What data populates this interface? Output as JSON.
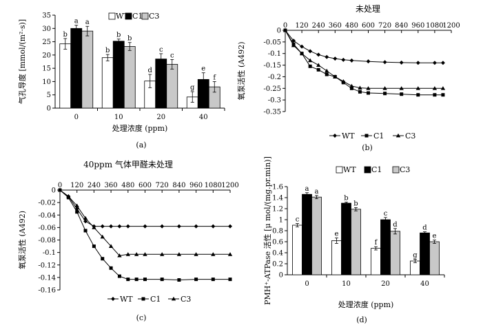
{
  "chart_data": [
    {
      "id": "a",
      "type": "bar",
      "caption": "(a)",
      "title": "",
      "xlabel": "处理浓度 (ppm)",
      "ylabel": "气孔导度 [mmol/(m²·s)]",
      "ylim": [
        0,
        35
      ],
      "yticks": [
        "0",
        "5",
        "10",
        "15",
        "20",
        "25",
        "30",
        "35"
      ],
      "categories": [
        "0",
        "10",
        "20",
        "40"
      ],
      "legend": [
        "WT",
        "C1",
        "C3"
      ],
      "series": [
        {
          "name": "WT",
          "color": "#ffffff",
          "values": [
            24.2,
            19.0,
            10.2,
            4.2
          ],
          "errors": [
            2.0,
            1.2,
            2.5,
            2.0
          ],
          "letters": [
            "b",
            "b",
            "d",
            "g"
          ]
        },
        {
          "name": "C1",
          "color": "#000000",
          "values": [
            30.0,
            25.2,
            18.5,
            10.8
          ],
          "errors": [
            1.2,
            0.8,
            2.0,
            2.5
          ],
          "letters": [
            "a",
            "b",
            "c",
            "e"
          ]
        },
        {
          "name": "C3",
          "color": "#c8c8c8",
          "values": [
            29.0,
            23.2,
            16.5,
            8.0
          ],
          "errors": [
            1.8,
            1.5,
            1.8,
            2.0
          ],
          "letters": [
            "a",
            "b",
            "c",
            "f"
          ]
        }
      ]
    },
    {
      "id": "b",
      "type": "line",
      "caption": "(b)",
      "title": "未处理",
      "ylabel": "氧泵活性 (A492)",
      "ylim": [
        -0.35,
        0
      ],
      "xlim": [
        0,
        1200
      ],
      "yticks": [
        "0",
        "-0.05",
        "-0.1",
        "-0.15",
        "-0.2",
        "-0.25",
        "-0.3",
        "-0.35"
      ],
      "xticks": [
        "0",
        "120",
        "240",
        "360",
        "480",
        "600",
        "720",
        "840",
        "960",
        "1080",
        "1200"
      ],
      "legend": [
        "WT",
        "C1",
        "C3"
      ],
      "series": [
        {
          "name": "WT",
          "marker": "diamond",
          "x": [
            0,
            60,
            120,
            180,
            240,
            300,
            360,
            420,
            480,
            600,
            720,
            840,
            960,
            1080,
            1140
          ],
          "y": [
            0,
            -0.045,
            -0.07,
            -0.09,
            -0.105,
            -0.115,
            -0.122,
            -0.127,
            -0.13,
            -0.134,
            -0.137,
            -0.139,
            -0.14,
            -0.14,
            -0.14
          ]
        },
        {
          "name": "C1",
          "marker": "square",
          "x": [
            0,
            60,
            120,
            180,
            240,
            300,
            360,
            420,
            480,
            540,
            600,
            720,
            840,
            960,
            1080,
            1140
          ],
          "y": [
            0,
            -0.06,
            -0.1,
            -0.155,
            -0.17,
            -0.19,
            -0.2,
            -0.225,
            -0.25,
            -0.265,
            -0.27,
            -0.272,
            -0.275,
            -0.278,
            -0.278,
            -0.278
          ]
        },
        {
          "name": "C3",
          "marker": "triangle",
          "x": [
            0,
            60,
            120,
            180,
            240,
            300,
            360,
            420,
            480,
            540,
            600,
            720,
            840,
            960,
            1080,
            1140
          ],
          "y": [
            0,
            -0.065,
            -0.1,
            -0.13,
            -0.15,
            -0.175,
            -0.2,
            -0.22,
            -0.24,
            -0.248,
            -0.25,
            -0.25,
            -0.25,
            -0.25,
            -0.25,
            -0.25
          ]
        }
      ]
    },
    {
      "id": "c",
      "type": "line",
      "caption": "(c)",
      "title": "40ppm 气体甲醛未处理",
      "ylabel": "氧泵活性 (A492)",
      "ylim": [
        -0.16,
        0
      ],
      "xlim": [
        0,
        1200
      ],
      "yticks": [
        "0",
        "-0.02",
        "-0.04",
        "-0.06",
        "-0.08",
        "-0.1",
        "-0.12",
        "-0.14",
        "-0.16"
      ],
      "xticks": [
        "0",
        "120",
        "240",
        "360",
        "480",
        "600",
        "720",
        "840",
        "960",
        "1080",
        "1200"
      ],
      "legend": [
        "WT",
        "C1",
        "C3"
      ],
      "series": [
        {
          "name": "WT",
          "marker": "diamond",
          "x": [
            0,
            60,
            120,
            180,
            240,
            300,
            360,
            420,
            480,
            600,
            720,
            840,
            960,
            1080,
            1200
          ],
          "y": [
            0,
            -0.01,
            -0.03,
            -0.05,
            -0.058,
            -0.058,
            -0.058,
            -0.058,
            -0.058,
            -0.058,
            -0.058,
            -0.058,
            -0.058,
            -0.058,
            -0.058
          ]
        },
        {
          "name": "C1",
          "marker": "square",
          "x": [
            0,
            60,
            120,
            180,
            240,
            300,
            360,
            420,
            480,
            540,
            600,
            720,
            840,
            960,
            1080,
            1200
          ],
          "y": [
            0,
            -0.012,
            -0.035,
            -0.065,
            -0.09,
            -0.11,
            -0.125,
            -0.138,
            -0.143,
            -0.143,
            -0.143,
            -0.143,
            -0.144,
            -0.143,
            -0.143,
            -0.143
          ]
        },
        {
          "name": "C3",
          "marker": "triangle",
          "x": [
            0,
            60,
            120,
            180,
            240,
            300,
            360,
            420,
            480,
            540,
            600,
            720,
            840,
            960,
            1080,
            1200
          ],
          "y": [
            0,
            -0.01,
            -0.025,
            -0.045,
            -0.06,
            -0.075,
            -0.09,
            -0.105,
            -0.103,
            -0.103,
            -0.103,
            -0.103,
            -0.103,
            -0.103,
            -0.103,
            -0.103
          ]
        }
      ]
    },
    {
      "id": "d",
      "type": "bar",
      "caption": "(d)",
      "title": "",
      "xlabel": "处理浓度 (ppm)",
      "ylabel": "PMH⁺-ATPase 活性 [μ mol/(mg.pr.min)]",
      "ylim": [
        0,
        1.6
      ],
      "yticks": [
        "0",
        "0.2",
        "0.4",
        "0.6",
        "0.8",
        "1",
        "1.2",
        "1.4",
        "1.6"
      ],
      "categories": [
        "0",
        "10",
        "20",
        "40"
      ],
      "legend": [
        "WT",
        "C1",
        "C3"
      ],
      "series": [
        {
          "name": "WT",
          "color": "#ffffff",
          "values": [
            0.9,
            0.62,
            0.48,
            0.25
          ],
          "errors": [
            0.03,
            0.05,
            0.03,
            0.03
          ],
          "letters": [
            "c",
            "e",
            "f",
            "g"
          ]
        },
        {
          "name": "C1",
          "color": "#000000",
          "values": [
            1.46,
            1.3,
            1.0,
            0.76
          ],
          "errors": [
            0.03,
            0.02,
            0.04,
            0.02
          ],
          "letters": [
            "a",
            "b",
            "c",
            "d"
          ]
        },
        {
          "name": "C3",
          "color": "#c8c8c8",
          "values": [
            1.41,
            1.19,
            0.79,
            0.6
          ],
          "errors": [
            0.03,
            0.03,
            0.05,
            0.03
          ],
          "letters": [
            "a",
            "b",
            "d",
            "e"
          ]
        }
      ]
    }
  ]
}
